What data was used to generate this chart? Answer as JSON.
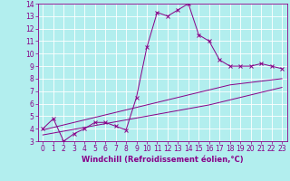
{
  "xlabel": "Windchill (Refroidissement éolien,°C)",
  "x_values": [
    0,
    1,
    2,
    3,
    4,
    5,
    6,
    7,
    8,
    9,
    10,
    11,
    12,
    13,
    14,
    15,
    16,
    17,
    18,
    19,
    20,
    21,
    22,
    23
  ],
  "line1": [
    4.0,
    4.8,
    3.0,
    3.6,
    4.0,
    4.5,
    4.5,
    4.2,
    3.9,
    6.5,
    10.5,
    13.3,
    13.0,
    13.5,
    14.0,
    11.5,
    11.0,
    9.5,
    9.0,
    9.0,
    9.0,
    9.2,
    9.0,
    8.8
  ],
  "line2": [
    3.9,
    4.1,
    4.3,
    4.5,
    4.7,
    4.9,
    5.1,
    5.3,
    5.5,
    5.7,
    5.9,
    6.1,
    6.3,
    6.5,
    6.7,
    6.9,
    7.1,
    7.3,
    7.5,
    7.6,
    7.7,
    7.8,
    7.9,
    8.0
  ],
  "line3": [
    3.5,
    3.65,
    3.8,
    3.95,
    4.1,
    4.25,
    4.4,
    4.55,
    4.7,
    4.85,
    5.0,
    5.15,
    5.3,
    5.45,
    5.6,
    5.75,
    5.9,
    6.1,
    6.3,
    6.5,
    6.7,
    6.9,
    7.1,
    7.3
  ],
  "line_color": "#880088",
  "bg_color": "#b2eeee",
  "grid_color": "#ddffff",
  "ylim": [
    3,
    14
  ],
  "xlim": [
    -0.5,
    23.5
  ],
  "yticks": [
    3,
    4,
    5,
    6,
    7,
    8,
    9,
    10,
    11,
    12,
    13,
    14
  ],
  "xticks": [
    0,
    1,
    2,
    3,
    4,
    5,
    6,
    7,
    8,
    9,
    10,
    11,
    12,
    13,
    14,
    15,
    16,
    17,
    18,
    19,
    20,
    21,
    22,
    23
  ],
  "tick_fontsize": 5.5,
  "xlabel_fontsize": 6.0
}
